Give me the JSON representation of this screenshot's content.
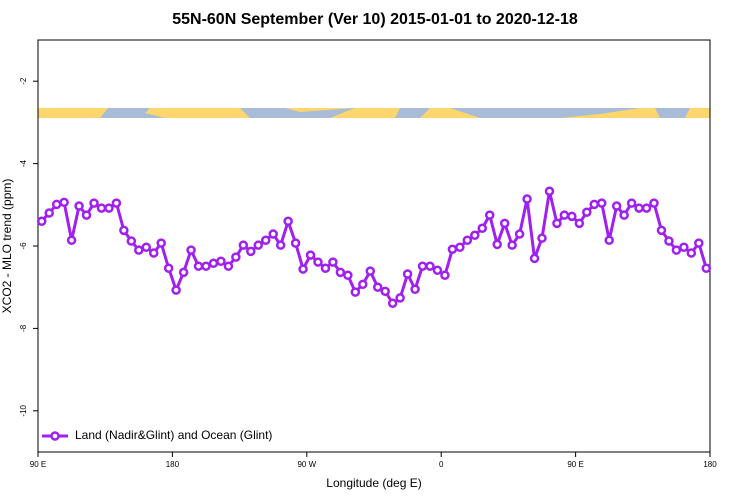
{
  "chart_data": {
    "type": "line",
    "title": "55N-60N September (Ver 10)   2015-01-01 to 2020-12-18",
    "xlabel": "Longitude (deg E)",
    "ylabel": "XCO2 - MLO trend (ppm)",
    "xlim": [
      90,
      540
    ],
    "xticks": [
      {
        "value": 90,
        "label": "90 E"
      },
      180,
      {
        "value": 270,
        "label": "90 W"
      },
      {
        "value": 360,
        "label": "0"
      },
      {
        "value": 450,
        "label": "90 E"
      },
      {
        "value": 540,
        "label": "180"
      }
    ],
    "ylim": [
      -11,
      -1
    ],
    "yticks": [
      -10,
      -8,
      -6,
      -4,
      -2
    ],
    "grid": false,
    "legend": "bottom-left",
    "x": [
      92.5,
      97.5,
      102.5,
      107.5,
      112.5,
      117.5,
      122.5,
      127.5,
      132.5,
      137.5,
      142.5,
      147.5,
      152.5,
      157.5,
      162.5,
      167.5,
      172.5,
      177.5,
      182.5,
      187.5,
      192.5,
      197.5,
      202.5,
      207.5,
      212.5,
      217.5,
      222.5,
      227.5,
      232.5,
      237.5,
      242.5,
      247.5,
      252.5,
      257.5,
      262.5,
      267.5,
      272.5,
      277.5,
      282.5,
      287.5,
      292.5,
      297.5,
      302.5,
      307.5,
      312.5,
      317.5,
      322.5,
      327.5,
      332.5,
      337.5,
      342.5,
      347.5,
      352.5,
      357.5,
      362.5,
      367.5,
      372.5,
      377.5,
      382.5,
      387.5,
      392.5,
      397.5,
      402.5,
      407.5,
      412.5,
      417.5,
      422.5,
      427.5,
      432.5,
      437.5,
      442.5,
      447.5,
      452.5,
      457.5,
      462.5,
      467.5,
      472.5,
      477.5,
      482.5,
      487.5,
      492.5,
      497.5,
      502.5,
      507.5,
      512.5,
      517.5,
      522.5,
      527.5,
      532.5,
      537.5
    ],
    "series": [
      {
        "name": "Land (Nadir&Glint) and Ocean (Glint)",
        "color": "#a020f0",
        "values": [
          -5.4,
          -5.2,
          -4.99,
          -4.94,
          -5.86,
          -5.03,
          -5.25,
          -4.96,
          -5.08,
          -5.08,
          -4.96,
          -5.62,
          -5.88,
          -6.1,
          -6.03,
          -6.17,
          -5.93,
          -6.54,
          -7.07,
          -6.64,
          -6.1,
          -6.49,
          -6.49,
          -6.42,
          -6.37,
          -6.49,
          -6.27,
          -5.98,
          -6.13,
          -5.98,
          -5.86,
          -5.71,
          -5.98,
          -5.4,
          -5.93,
          -6.56,
          -6.22,
          -6.39,
          -6.54,
          -6.39,
          -6.64,
          -6.71,
          -7.12,
          -6.93,
          -6.61,
          -7.0,
          -7.1,
          -7.39,
          -7.26,
          -6.68,
          -7.05,
          -6.49,
          -6.49,
          -6.59,
          -6.71,
          -6.08,
          -6.03,
          -5.86,
          -5.74,
          -5.57,
          -5.25,
          -5.96,
          -5.45,
          -5.98,
          -5.71,
          -4.86,
          -6.3,
          -5.81,
          -4.67,
          -5.45,
          -5.25,
          -5.28,
          -5.45,
          -5.18,
          -4.99,
          -4.96,
          -5.86,
          -5.03,
          -5.25,
          -4.96,
          -5.08,
          -5.08,
          -4.96,
          -5.62,
          -5.88,
          -6.1,
          -6.03,
          -6.17,
          -5.93,
          -6.54
        ]
      }
    ]
  }
}
